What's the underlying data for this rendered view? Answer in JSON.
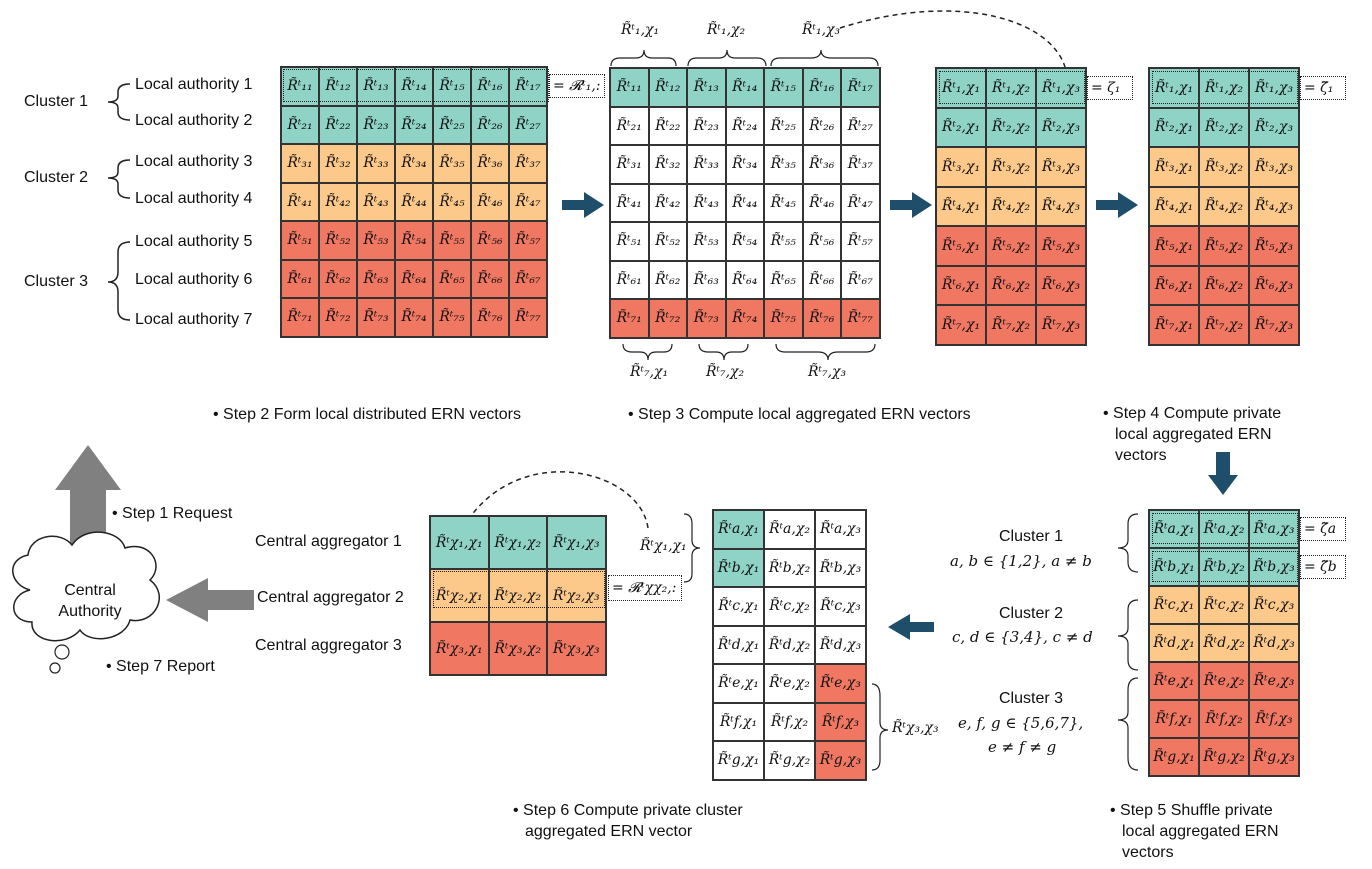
{
  "colors": {
    "teal": "#8fd3c7",
    "orange": "#fdc98a",
    "red": "#f07762",
    "arrow_dark": "#1f4e6a",
    "arrow_gray": "#808080"
  },
  "clusters_left": [
    "Cluster 1",
    "Cluster 2",
    "Cluster 3"
  ],
  "local_authorities": [
    "Local authority 1",
    "Local authority 2",
    "Local authority 3",
    "Local authority 4",
    "Local authority 5",
    "Local authority 6",
    "Local authority 7"
  ],
  "grid1": [
    [
      "R̃ᵗ₁₁",
      "R̃ᵗ₁₂",
      "R̃ᵗ₁₃",
      "R̃ᵗ₁₄",
      "R̃ᵗ₁₅",
      "R̃ᵗ₁₆",
      "R̃ᵗ₁₇"
    ],
    [
      "R̃ᵗ₂₁",
      "R̃ᵗ₂₂",
      "R̃ᵗ₂₃",
      "R̃ᵗ₂₄",
      "R̃ᵗ₂₅",
      "R̃ᵗ₂₆",
      "R̃ᵗ₂₇"
    ],
    [
      "R̃ᵗ₃₁",
      "R̃ᵗ₃₂",
      "R̃ᵗ₃₃",
      "R̃ᵗ₃₄",
      "R̃ᵗ₃₅",
      "R̃ᵗ₃₆",
      "R̃ᵗ₃₇"
    ],
    [
      "R̃ᵗ₄₁",
      "R̃ᵗ₄₂",
      "R̃ᵗ₄₃",
      "R̃ᵗ₄₄",
      "R̃ᵗ₄₅",
      "R̃ᵗ₄₆",
      "R̃ᵗ₄₇"
    ],
    [
      "R̃ᵗ₅₁",
      "R̃ᵗ₅₂",
      "R̃ᵗ₅₃",
      "R̃ᵗ₅₄",
      "R̃ᵗ₅₅",
      "R̃ᵗ₅₆",
      "R̃ᵗ₅₇"
    ],
    [
      "R̃ᵗ₆₁",
      "R̃ᵗ₆₂",
      "R̃ᵗ₆₃",
      "R̃ᵗ₆₄",
      "R̃ᵗ₆₅",
      "R̃ᵗ₆₆",
      "R̃ᵗ₆₇"
    ],
    [
      "R̃ᵗ₇₁",
      "R̃ᵗ₇₂",
      "R̃ᵗ₇₃",
      "R̃ᵗ₇₄",
      "R̃ᵗ₇₅",
      "R̃ᵗ₇₆",
      "R̃ᵗ₇₇"
    ]
  ],
  "grid1_label": "= 𝓡ᵗ₁,:",
  "grid2_top": [
    "R̃ᵗ₁,χ₁",
    "R̃ᵗ₁,χ₂",
    "R̃ᵗ₁,χ₃"
  ],
  "grid2_bottom": [
    "R̃ᵗ₇,χ₁",
    "R̃ᵗ₇,χ₂",
    "R̃ᵗ₇,χ₃"
  ],
  "grid3": [
    [
      "R̃ᵗ₁,χ₁",
      "R̃ᵗ₁,χ₂",
      "R̃ᵗ₁,χ₃"
    ],
    [
      "R̃ᵗ₂,χ₁",
      "R̃ᵗ₂,χ₂",
      "R̃ᵗ₂,χ₃"
    ],
    [
      "R̃ᵗ₃,χ₁",
      "R̃ᵗ₃,χ₂",
      "R̃ᵗ₃,χ₃"
    ],
    [
      "R̃ᵗ₄,χ₁",
      "R̃ᵗ₄,χ₂",
      "R̃ᵗ₄,χ₃"
    ],
    [
      "R̃ᵗ₅,χ₁",
      "R̃ᵗ₅,χ₂",
      "R̃ᵗ₅,χ₃"
    ],
    [
      "R̃ᵗ₆,χ₁",
      "R̃ᵗ₆,χ₂",
      "R̃ᵗ₆,χ₃"
    ],
    [
      "R̃ᵗ₇,χ₁",
      "R̃ᵗ₇,χ₂",
      "R̃ᵗ₇,χ₃"
    ]
  ],
  "grid3_label": "= ζ₁",
  "grid4_label": "= ζ̃₁",
  "grid5": [
    [
      "R̃ᵗa,χ₁",
      "R̃ᵗa,χ₂",
      "R̃ᵗa,χ₃"
    ],
    [
      "R̃ᵗb,χ₁",
      "R̃ᵗb,χ₂",
      "R̃ᵗb,χ₃"
    ],
    [
      "R̃ᵗc,χ₁",
      "R̃ᵗc,χ₂",
      "R̃ᵗc,χ₃"
    ],
    [
      "R̃ᵗd,χ₁",
      "R̃ᵗd,χ₂",
      "R̃ᵗd,χ₃"
    ],
    [
      "R̃ᵗe,χ₁",
      "R̃ᵗe,χ₂",
      "R̃ᵗe,χ₃"
    ],
    [
      "R̃ᵗf,χ₁",
      "R̃ᵗf,χ₂",
      "R̃ᵗf,χ₃"
    ],
    [
      "R̃ᵗg,χ₁",
      "R̃ᵗg,χ₂",
      "R̃ᵗg,χ₃"
    ]
  ],
  "grid5_labels": [
    "= ζ̃a",
    "= ζ̃b"
  ],
  "grid5_clusters": [
    {
      "name": "Cluster 1",
      "cond": "a, b ∈ {1,2}, a ≠ b"
    },
    {
      "name": "Cluster 2",
      "cond": "c, d ∈ {3,4}, c ≠ d"
    },
    {
      "name": "Cluster 3",
      "cond1": "e, f, g ∈ {5,6,7},",
      "cond2": "e ≠ f ≠ g"
    }
  ],
  "grid6_labels": {
    "top": "R̃ᵗχ₁,χ₁",
    "bottom": "R̃ᵗχ₃,χ₃"
  },
  "grid7": [
    [
      "R̃ᵗχ₁,χ₁",
      "R̃ᵗχ₁,χ₂",
      "R̃ᵗχ₁,χ₃"
    ],
    [
      "R̃ᵗχ₂,χ₁",
      "R̃ᵗχ₂,χ₂",
      "R̃ᵗχ₂,χ₃"
    ],
    [
      "R̃ᵗχ₃,χ₁",
      "R̃ᵗχ₃,χ₂",
      "R̃ᵗχ₃,χ₃"
    ]
  ],
  "grid7_label": "= 𝓡ᵗχχ₂,:",
  "central_aggregators": [
    "Central aggregator 1",
    "Central aggregator 2",
    "Central aggregator 3"
  ],
  "central_authority": [
    "Central",
    "Authority"
  ],
  "steps": {
    "s1": "• Step 1 Request",
    "s2": "• Step 2 Form local distributed ERN vectors",
    "s3": "• Step 3 Compute local aggregated ERN vectors",
    "s4": [
      "• Step 4 Compute private",
      "local aggregated ERN",
      "vectors"
    ],
    "s5": [
      "• Step 5 Shuffle private",
      "local aggregated ERN",
      "vectors"
    ],
    "s6": [
      "• Step 6 Compute private cluster",
      "aggregated ERN vector"
    ],
    "s7": "• Step 7 Report"
  }
}
